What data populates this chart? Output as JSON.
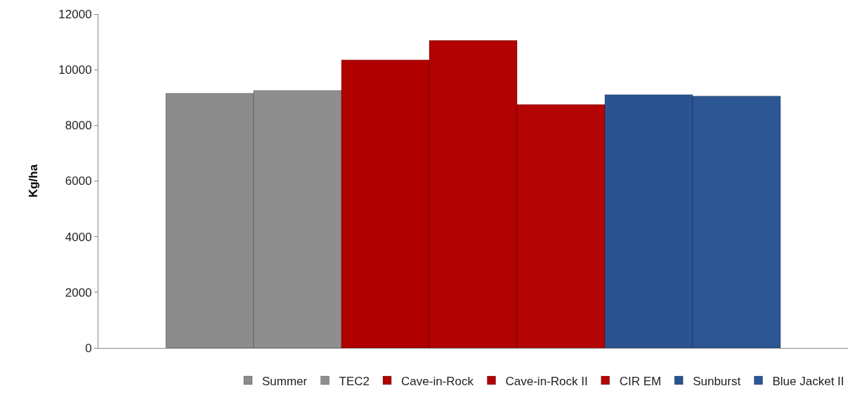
{
  "chart_data": {
    "type": "bar",
    "ylabel": "Kg/ha",
    "categories": [
      null
    ],
    "series": [
      {
        "name": "Summer",
        "color": "#8c8c8c",
        "values": [
          9150
        ]
      },
      {
        "name": "TEC2",
        "color": "#8e8e8e",
        "values": [
          9250
        ]
      },
      {
        "name": "Cave-in-Rock",
        "color": "#b00000",
        "values": [
          10350
        ]
      },
      {
        "name": "Cave-in-Rock II",
        "color": "#b20202",
        "values": [
          11050
        ]
      },
      {
        "name": "CIR EM",
        "color": "#b40404",
        "values": [
          8750
        ]
      },
      {
        "name": "Sunburst",
        "color": "#2a5490",
        "values": [
          9100
        ]
      },
      {
        "name": "Blue Jacket II",
        "color": "#2c5694",
        "values": [
          9050
        ]
      }
    ],
    "ylim": [
      0,
      12000
    ],
    "yticks": [
      0,
      2000,
      4000,
      6000,
      8000,
      10000,
      12000
    ],
    "grid": false,
    "legend": "bottom",
    "tick_labels": "y"
  }
}
